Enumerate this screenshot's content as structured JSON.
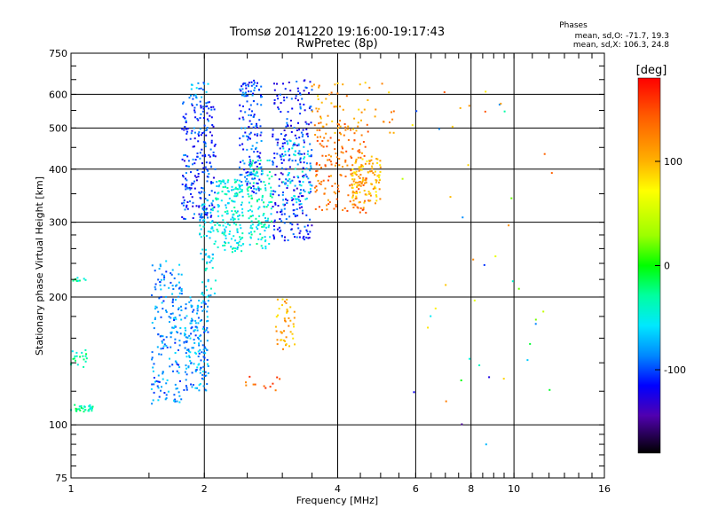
{
  "chart_data": {
    "type": "scatter",
    "title": "Tromsø 20141220 19:16:00-19:17:43",
    "subtitle": "RwPretec (8p)",
    "xlabel": "Frequency [MHz]",
    "ylabel": "Stationary phase Virtual Height [km]",
    "x_scale": "log",
    "y_scale": "log",
    "xlim": [
      1,
      16
    ],
    "ylim": [
      75,
      750
    ],
    "x_ticks": [
      1,
      2,
      4,
      6,
      8,
      10,
      16
    ],
    "x_tick_labels": [
      "1",
      "2",
      "4",
      "6",
      "8",
      "10",
      "16"
    ],
    "y_ticks": [
      75,
      100,
      200,
      300,
      400,
      500,
      600,
      750
    ],
    "y_tick_labels": [
      "75",
      "100",
      "200",
      "300",
      "400",
      "500",
      "600",
      "750"
    ],
    "grid": true,
    "phases_title": "Phases",
    "phases_lines": [
      "mean, sd,O: -71.7, 19.3",
      "mean, sd,X: 106.3, 24.8"
    ],
    "colorbar": {
      "label": "[deg]",
      "range": [
        -180,
        180
      ],
      "ticks": [
        100,
        0,
        -100
      ],
      "tick_labels": [
        "100",
        "0",
        "-100"
      ]
    },
    "clusters": [
      {
        "x": [
          1.0,
          1.12
        ],
        "y": [
          107,
          112
        ],
        "phase": -30,
        "n": 30
      },
      {
        "x": [
          1.0,
          1.1
        ],
        "y": [
          135,
          150
        ],
        "phase": -35,
        "n": 20
      },
      {
        "x": [
          1.0,
          1.1
        ],
        "y": [
          218,
          222
        ],
        "phase": -40,
        "n": 10
      },
      {
        "x": [
          1.52,
          1.78
        ],
        "y": [
          112,
          245
        ],
        "phase": -85,
        "n": 180
      },
      {
        "x": [
          1.8,
          2.05
        ],
        "y": [
          120,
          200
        ],
        "phase": -80,
        "n": 170
      },
      {
        "x": [
          1.95,
          2.12
        ],
        "y": [
          200,
          340
        ],
        "phase": -60,
        "n": 80
      },
      {
        "x": [
          1.78,
          2.12
        ],
        "y": [
          305,
          580
        ],
        "phase": -105,
        "n": 220
      },
      {
        "x": [
          1.85,
          2.05
        ],
        "y": [
          585,
          640
        ],
        "phase": -80,
        "n": 20
      },
      {
        "x": [
          2.12,
          2.45
        ],
        "y": [
          255,
          380
        ],
        "phase": -50,
        "n": 160
      },
      {
        "x": [
          2.4,
          2.7
        ],
        "y": [
          350,
          650
        ],
        "phase": -100,
        "n": 160
      },
      {
        "x": [
          2.5,
          2.85
        ],
        "y": [
          260,
          420
        ],
        "phase": -45,
        "n": 130
      },
      {
        "x": [
          2.85,
          3.5
        ],
        "y": [
          270,
          650
        ],
        "phase": -110,
        "n": 260
      },
      {
        "x": [
          3.0,
          3.5
        ],
        "y": [
          330,
          470
        ],
        "phase": -60,
        "n": 70
      },
      {
        "x": [
          3.55,
          4.7
        ],
        "y": [
          315,
          520
        ],
        "phase": 130,
        "n": 170
      },
      {
        "x": [
          4.3,
          5.0
        ],
        "y": [
          330,
          430
        ],
        "phase": 100,
        "n": 110
      },
      {
        "x": [
          3.5,
          5.4
        ],
        "y": [
          480,
          640
        ],
        "phase": 110,
        "n": 60
      },
      {
        "x": [
          2.9,
          3.2
        ],
        "y": [
          150,
          200
        ],
        "phase": 105,
        "n": 45
      },
      {
        "x": [
          2.45,
          3.0
        ],
        "y": [
          120,
          130
        ],
        "phase": 140,
        "n": 12
      },
      {
        "x": [
          5.5,
          12.5
        ],
        "y": [
          80,
          640
        ],
        "phase": 0,
        "n": 45
      }
    ]
  }
}
